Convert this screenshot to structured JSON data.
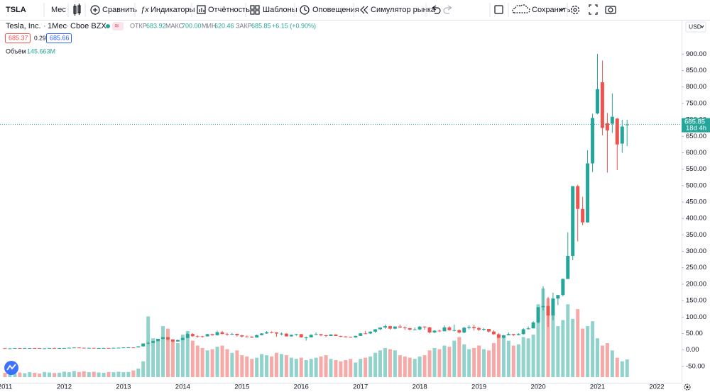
{
  "toolbar": {
    "symbol": "TSLA",
    "interval": "Мес",
    "compare": "Сравнить",
    "indicators": "Индикаторы",
    "financials": "Отчётность",
    "templates": "Шаблоны",
    "alerts": "Оповещения",
    "replay": "Симулятор рынка",
    "save": "Сохранить"
  },
  "legend": {
    "name": "Tesla, Inc.",
    "interval": "1Мес",
    "exchange": "Cboe BZX",
    "open_label": "ОТКР",
    "open": "683.92",
    "high_label": "МАКС",
    "high": "700.00",
    "low_label": "МИН",
    "low": "620.46",
    "close_label": "ЗАКР",
    "close": "685.85",
    "change": "+6.15 (+0.90%)",
    "bid": "685.37",
    "spread": "0.29",
    "ask": "685.66",
    "volume_label": "Объём",
    "volume": "145.663M"
  },
  "axis": {
    "currency": "USD",
    "last_price": "685.85",
    "countdown": "18d 4h"
  },
  "chart_data": {
    "type": "candlestick",
    "up_color": "#26a69a",
    "down_color": "#ef5350",
    "grid": false,
    "xlim": [
      2010.916,
      2022.42
    ],
    "xticks": [
      2011,
      2012,
      2013,
      2014,
      2015,
      2016,
      2017,
      2018,
      2019,
      2020,
      2021,
      2022
    ],
    "ylim": [
      -100,
      1000
    ],
    "yticks": [
      {
        "value": -50,
        "label": "-50.00"
      },
      {
        "value": 0,
        "label": "0.00"
      },
      {
        "value": 50,
        "label": "50.00"
      },
      {
        "value": 100,
        "label": "100.00"
      },
      {
        "value": 150,
        "label": "150.00"
      },
      {
        "value": 200,
        "label": "200.00"
      },
      {
        "value": 250,
        "label": "250.00"
      },
      {
        "value": 300,
        "label": "300.00"
      },
      {
        "value": 350,
        "label": "350.00"
      },
      {
        "value": 400,
        "label": "400.00"
      },
      {
        "value": 450,
        "label": "450.00"
      },
      {
        "value": 500,
        "label": "500.00"
      },
      {
        "value": 550,
        "label": "550.00"
      },
      {
        "value": 600,
        "label": "600.00"
      },
      {
        "value": 650,
        "label": "650.00"
      },
      {
        "value": 700,
        "label": "700.00"
      },
      {
        "value": 750,
        "label": "750.00"
      },
      {
        "value": 800,
        "label": "800.00"
      },
      {
        "value": 850,
        "label": "850.00"
      },
      {
        "value": 900,
        "label": "900.00"
      }
    ],
    "x": [
      2011.0,
      2011.083,
      2011.167,
      2011.25,
      2011.333,
      2011.417,
      2011.5,
      2011.583,
      2011.667,
      2011.75,
      2011.833,
      2011.917,
      2012.0,
      2012.083,
      2012.167,
      2012.25,
      2012.333,
      2012.417,
      2012.5,
      2012.583,
      2012.667,
      2012.75,
      2012.833,
      2012.917,
      2013.0,
      2013.083,
      2013.167,
      2013.25,
      2013.333,
      2013.417,
      2013.5,
      2013.583,
      2013.667,
      2013.75,
      2013.833,
      2013.917,
      2014.0,
      2014.083,
      2014.167,
      2014.25,
      2014.333,
      2014.417,
      2014.5,
      2014.583,
      2014.667,
      2014.75,
      2014.833,
      2014.917,
      2015.0,
      2015.083,
      2015.167,
      2015.25,
      2015.333,
      2015.417,
      2015.5,
      2015.583,
      2015.667,
      2015.75,
      2015.833,
      2015.917,
      2016.0,
      2016.083,
      2016.167,
      2016.25,
      2016.333,
      2016.417,
      2016.5,
      2016.583,
      2016.667,
      2016.75,
      2016.833,
      2016.917,
      2017.0,
      2017.083,
      2017.167,
      2017.25,
      2017.333,
      2017.417,
      2017.5,
      2017.583,
      2017.667,
      2017.75,
      2017.833,
      2017.917,
      2018.0,
      2018.083,
      2018.167,
      2018.25,
      2018.333,
      2018.417,
      2018.5,
      2018.583,
      2018.667,
      2018.75,
      2018.833,
      2018.917,
      2019.0,
      2019.083,
      2019.167,
      2019.25,
      2019.333,
      2019.417,
      2019.5,
      2019.583,
      2019.667,
      2019.75,
      2019.833,
      2019.917,
      2020.0,
      2020.083,
      2020.167,
      2020.25,
      2020.333,
      2020.417,
      2020.5,
      2020.583,
      2020.667,
      2020.75,
      2020.833,
      2020.917,
      2021.0,
      2021.083,
      2021.167,
      2021.25,
      2021.333,
      2021.417,
      2021.5
    ],
    "open": [
      5.3,
      4.8,
      4.8,
      5.6,
      5.5,
      5.8,
      5.8,
      5.7,
      4.9,
      4.9,
      5.9,
      5.0,
      5.7,
      5.8,
      6.7,
      7.4,
      6.6,
      5.9,
      6.3,
      5.5,
      5.7,
      5.9,
      5.6,
      6.4,
      6.8,
      7.5,
      7.7,
      7.6,
      10.8,
      19.6,
      21.4,
      26.9,
      33.7,
      38.6,
      31.9,
      25.5,
      30.1,
      36.3,
      48.6,
      41.7,
      41.6,
      41.3,
      48.0,
      44.7,
      53.9,
      48.5,
      48.2,
      48.9,
      44.5,
      40.8,
      40.6,
      37.7,
      45.1,
      50.1,
      53.7,
      53.3,
      49.7,
      49.7,
      41.2,
      46.0,
      48.0,
      38.2,
      38.3,
      45.9,
      48.0,
      44.7,
      42.4,
      47.0,
      42.4,
      40.8,
      39.5,
      37.9,
      42.7,
      50.4,
      50.0,
      55.7,
      62.8,
      68.2,
      72.3,
      64.7,
      71.2,
      68.2,
      66.2,
      61.6,
      62.3,
      70.9,
      68.6,
      53.2,
      58.8,
      56.9,
      68.6,
      59.9,
      60.3,
      52.9,
      67.5,
      70.1,
      66.6,
      61.4,
      63.9,
      56.0,
      47.7,
      37.0,
      44.7,
      48.3,
      45.1,
      48.2,
      62.9,
      65.6,
      83.7,
      130.1,
      133.6,
      104.8,
      156.4,
      167.0,
      215.9,
      286.2,
      498.3,
      429.0,
      388.0,
      567.6,
      719.5,
      814.3,
      690.0,
      688.4,
      703.8,
      627.8,
      683.92
    ],
    "high": [
      5.5,
      5.0,
      5.7,
      5.9,
      6.0,
      6.0,
      6.1,
      5.8,
      5.3,
      6.0,
      6.4,
      5.9,
      6.1,
      7.1,
      7.6,
      7.5,
      6.8,
      6.6,
      6.5,
      5.9,
      6.3,
      6.0,
      6.8,
      7.0,
      7.9,
      8.2,
      8.1,
      11.0,
      19.9,
      26.0,
      27.6,
      34.0,
      39.0,
      38.8,
      32.4,
      31.3,
      38.2,
      52.2,
      50.8,
      44.4,
      42.6,
      48.8,
      48.6,
      58.3,
      58.0,
      52.0,
      52.0,
      49.3,
      45.9,
      43.8,
      41.2,
      46.5,
      51.0,
      57.3,
      56.6,
      53.8,
      53.0,
      50.5,
      46.5,
      48.6,
      48.0,
      40.8,
      47.7,
      52.9,
      48.4,
      45.7,
      47.9,
      47.6,
      43.4,
      42.5,
      39.9,
      43.2,
      51.1,
      57.9,
      56.6,
      63.4,
      68.6,
      77.4,
      73.4,
      71.6,
      77.2,
      72.0,
      67.1,
      68.5,
      72.7,
      72.0,
      70.5,
      59.9,
      61.9,
      74.6,
      72.4,
      77.5,
      62.4,
      70.0,
      75.0,
      76.8,
      69.8,
      66.8,
      59.4,
      59.6,
      51.4,
      45.4,
      53.1,
      48.5,
      51.4,
      66.0,
      71.2,
      87.1,
      130.6,
      193.8,
      161.4,
      173.9,
      167.0,
      217.5,
      358.0,
      498.3,
      502.5,
      465.9,
      607.8,
      718.7,
      900.4,
      880.5,
      721.1,
      780.8,
      706.0,
      700.2,
      700.0
    ],
    "low": [
      4.7,
      4.4,
      4.7,
      5.2,
      5.2,
      5.1,
      5.4,
      4.5,
      4.4,
      4.5,
      4.8,
      4.7,
      4.4,
      5.7,
      6.6,
      6.4,
      5.4,
      5.7,
      5.3,
      5.2,
      5.5,
      5.4,
      5.5,
      6.3,
      6.5,
      7.2,
      7.1,
      7.5,
      10.6,
      16.6,
      20.6,
      26.0,
      32.0,
      28.4,
      23.2,
      25.3,
      28.9,
      35.6,
      40.0,
      37.4,
      37.6,
      40.6,
      43.1,
      44.0,
      47.6,
      43.2,
      45.6,
      40.4,
      38.0,
      39.0,
      36.4,
      37.3,
      44.1,
      49.0,
      51.5,
      39.8,
      44.7,
      40.8,
      40.8,
      43.0,
      37.1,
      28.2,
      38.3,
      45.2,
      41.7,
      38.7,
      42.3,
      42.2,
      38.5,
      38.0,
      37.3,
      37.4,
      42.6,
      49.2,
      48.6,
      51.8,
      60.4,
      64.4,
      61.4,
      62.8,
      66.6,
      60.6,
      59.6,
      61.0,
      59.5,
      61.4,
      50.3,
      50.6,
      54.3,
      56.0,
      58.3,
      56.1,
      50.1,
      50.6,
      62.5,
      58.9,
      57.8,
      58.0,
      52.7,
      46.3,
      35.7,
      35.4,
      44.5,
      42.5,
      44.3,
      45.8,
      62.6,
      65.3,
      80.9,
      120.1,
      70.1,
      90.4,
      136.6,
      163.0,
      216.2,
      273.0,
      329.9,
      379.1,
      388.0,
      541.2,
      717.2,
      653.0,
      539.5,
      660.2,
      546.98,
      599.9,
      620.46
    ],
    "close": [
      4.8,
      4.8,
      5.6,
      5.5,
      5.8,
      5.8,
      5.7,
      4.9,
      4.9,
      5.9,
      5.0,
      5.7,
      5.8,
      6.7,
      7.4,
      6.6,
      5.9,
      6.3,
      5.5,
      5.7,
      5.9,
      5.6,
      6.4,
      6.8,
      7.5,
      7.7,
      7.6,
      10.8,
      19.6,
      21.4,
      26.9,
      33.7,
      38.6,
      31.9,
      25.5,
      30.1,
      36.3,
      48.6,
      41.7,
      41.6,
      41.3,
      48.0,
      44.7,
      53.9,
      48.5,
      48.2,
      48.9,
      44.5,
      40.8,
      40.6,
      37.7,
      45.1,
      50.1,
      53.7,
      53.3,
      49.7,
      49.7,
      41.2,
      46.0,
      48.0,
      38.2,
      38.3,
      45.9,
      48.0,
      44.7,
      42.4,
      47.0,
      42.4,
      40.8,
      39.5,
      37.9,
      42.7,
      50.4,
      50.0,
      55.7,
      62.8,
      68.2,
      72.3,
      64.7,
      71.2,
      68.2,
      66.2,
      61.6,
      62.3,
      70.9,
      68.6,
      53.2,
      58.8,
      56.9,
      68.6,
      59.9,
      60.3,
      52.9,
      67.5,
      70.1,
      66.6,
      61.4,
      63.9,
      56.0,
      47.7,
      37.0,
      44.7,
      48.3,
      45.1,
      48.2,
      62.9,
      65.6,
      83.7,
      130.1,
      133.6,
      104.8,
      156.4,
      167.0,
      215.9,
      286.2,
      498.3,
      429.0,
      388.0,
      567.6,
      705.7,
      793.5,
      675.5,
      667.9,
      709.4,
      625.2,
      679.7,
      685.85
    ],
    "volume": [
      35,
      40,
      30,
      38,
      32,
      40,
      36,
      30,
      42,
      38,
      34,
      36,
      45,
      40,
      50,
      42,
      48,
      40,
      44,
      38,
      36,
      42,
      40,
      44,
      40,
      42,
      55,
      70,
      130,
      500,
      320,
      300,
      420,
      400,
      300,
      280,
      350,
      380,
      300,
      260,
      240,
      220,
      230,
      250,
      260,
      230,
      200,
      220,
      180,
      170,
      150,
      160,
      190,
      180,
      170,
      200,
      190,
      180,
      160,
      150,
      160,
      140,
      150,
      160,
      170,
      180,
      150,
      140,
      130,
      140,
      150,
      120,
      150,
      160,
      170,
      200,
      220,
      240,
      230,
      220,
      180,
      170,
      160,
      150,
      170,
      180,
      220,
      240,
      230,
      260,
      250,
      300,
      330,
      270,
      230,
      240,
      260,
      230,
      220,
      280,
      350,
      330,
      300,
      260,
      270,
      330,
      320,
      350,
      600,
      730,
      650,
      560,
      420,
      470,
      600,
      480,
      560,
      400,
      420,
      460,
      320,
      260,
      280,
      220,
      160,
      130,
      145.663
    ]
  }
}
